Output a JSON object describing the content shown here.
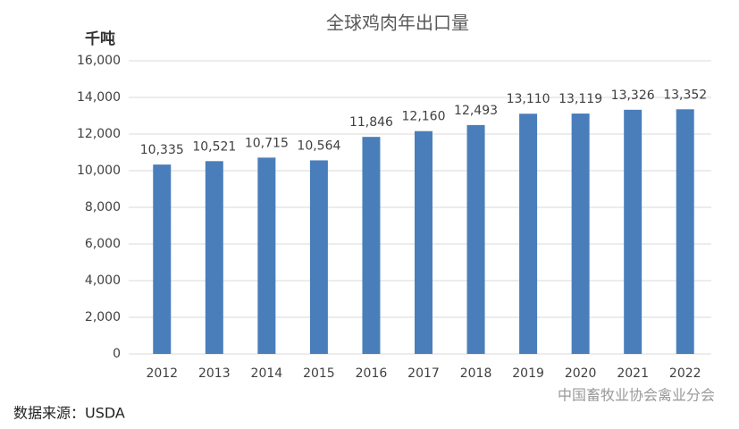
{
  "chart_data": {
    "type": "bar",
    "title": "全球鸡肉年出口量",
    "y_label": "千吨",
    "categories": [
      "2012",
      "2013",
      "2014",
      "2015",
      "2016",
      "2017",
      "2018",
      "2019",
      "2020",
      "2021",
      "2022"
    ],
    "values": [
      10335,
      10521,
      10715,
      10564,
      11846,
      12160,
      12493,
      13110,
      13119,
      13326,
      13352
    ],
    "value_labels": [
      "10,335",
      "10,521",
      "10,715",
      "10,564",
      "11,846",
      "12,160",
      "12,493",
      "13,110",
      "13,119",
      "13,326",
      "13,352"
    ],
    "color": "#4a7ebb",
    "ylim": [
      0,
      16000
    ],
    "yticks": [
      0,
      {
        "value": 2000,
        "label": "2,000"
      },
      {
        "value": 4000,
        "label": "4,000"
      },
      {
        "value": 6000,
        "label": "6,000"
      },
      {
        "value": 8000,
        "label": "8,000"
      },
      {
        "value": 10000,
        "label": "10,000"
      },
      {
        "value": 12000,
        "label": "12,000"
      },
      {
        "value": 14000,
        "label": "14,000"
      },
      {
        "value": 16000,
        "label": "16,000"
      }
    ],
    "grid": true,
    "source": "数据来源：USDA",
    "watermark": "中国畜牧业协会禽业分会"
  }
}
